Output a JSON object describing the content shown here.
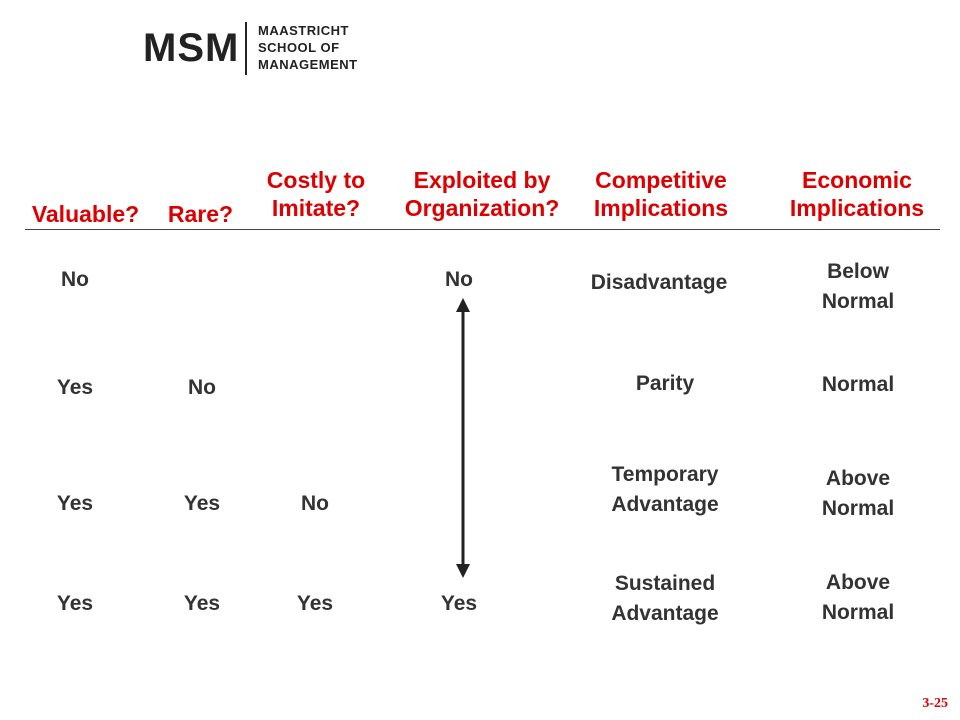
{
  "logo": {
    "mark": "MSM",
    "line1": "MAASTRICHT",
    "line2": "SCHOOL OF",
    "line3": "MANAGEMENT"
  },
  "headers": {
    "valuable": "Valuable?",
    "rare": "Rare?",
    "costly_line1": "Costly to",
    "costly_line2": "Imitate?",
    "exploited_line1": "Exploited by",
    "exploited_line2": "Organization?",
    "competitive_line1": "Competitive",
    "competitive_line2": "Implications",
    "economic_line1": "Economic",
    "economic_line2": "Implications"
  },
  "rows": [
    {
      "valuable": "No",
      "rare": "",
      "costly": "",
      "exploited": "No",
      "competitive": [
        "Disadvantage"
      ],
      "economic": [
        "Below",
        "Normal"
      ]
    },
    {
      "valuable": "Yes",
      "rare": "No",
      "costly": "",
      "exploited": "",
      "competitive": [
        "Parity"
      ],
      "economic": [
        "Normal"
      ]
    },
    {
      "valuable": "Yes",
      "rare": "Yes",
      "costly": "No",
      "exploited": "",
      "competitive": [
        "Temporary",
        "Advantage"
      ],
      "economic": [
        "Above",
        "Normal"
      ]
    },
    {
      "valuable": "Yes",
      "rare": "Yes",
      "costly": "Yes",
      "exploited": "Yes",
      "competitive": [
        "Sustained",
        "Advantage"
      ],
      "economic": [
        "Above",
        "Normal"
      ]
    }
  ],
  "page_number": "3-25",
  "colors": {
    "header": "#dd0000",
    "body": "#333333"
  }
}
